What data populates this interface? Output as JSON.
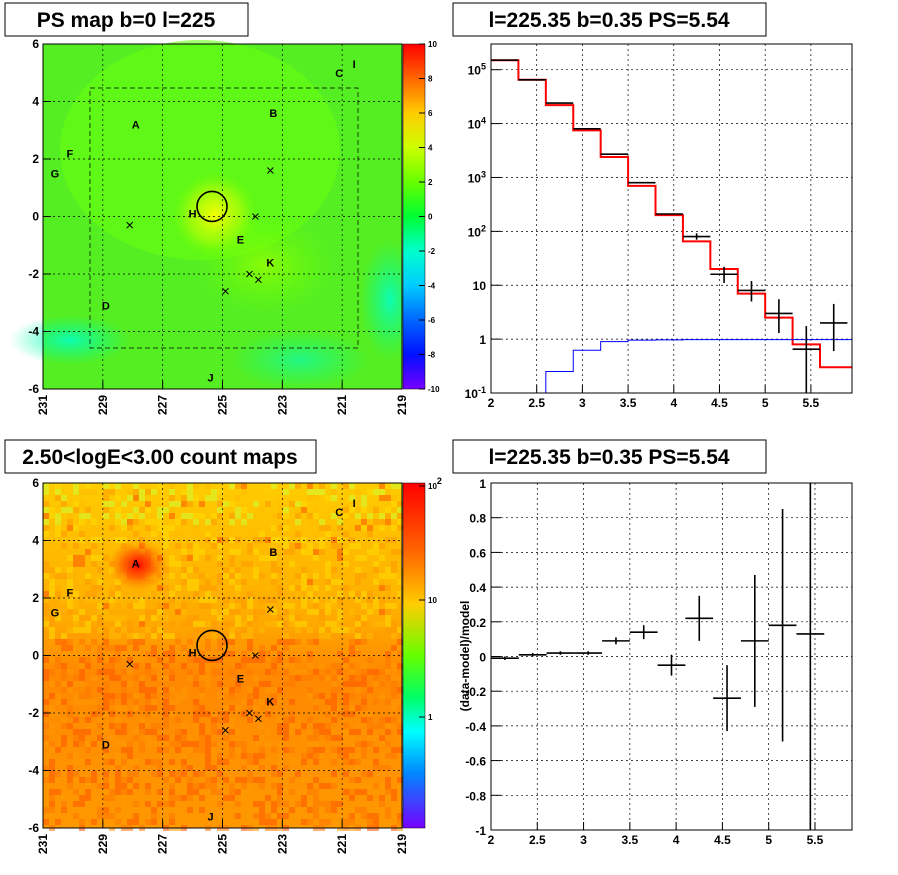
{
  "colors": {
    "model": "#ff0000",
    "data": "#000000",
    "background_model": "#0000ff"
  },
  "panels": {
    "ps_map": {
      "title": "PS map b=0 l=225",
      "x_ticks": [
        "231",
        "229",
        "227",
        "225",
        "223",
        "221",
        "219"
      ],
      "y_ticks": [
        "6",
        "4",
        "2",
        "0",
        "-2",
        "-4",
        "-6"
      ],
      "colorbar_ticks": [
        "10",
        "8",
        "6",
        "4",
        "2",
        "0",
        "-2",
        "-4",
        "-6",
        "-8",
        "-10"
      ],
      "sources": [
        {
          "name": "A",
          "l": 227.9,
          "b": 3.2
        },
        {
          "name": "B",
          "l": 223.3,
          "b": 3.6
        },
        {
          "name": "C",
          "l": 221.1,
          "b": 5.0
        },
        {
          "name": "I",
          "l": 220.6,
          "b": 5.3
        },
        {
          "name": "F",
          "l": 230.1,
          "b": 2.2
        },
        {
          "name": "G",
          "l": 230.6,
          "b": 1.5
        },
        {
          "name": "H",
          "l": 226.0,
          "b": 0.1
        },
        {
          "name": "E",
          "l": 224.4,
          "b": -0.8
        },
        {
          "name": "K",
          "l": 223.4,
          "b": -1.6
        },
        {
          "name": "D",
          "l": 228.9,
          "b": -3.1
        },
        {
          "name": "J",
          "l": 225.4,
          "b": -5.6
        }
      ],
      "crosses": [
        {
          "l": 223.4,
          "b": 1.6
        },
        {
          "l": 223.9,
          "b": 0.0
        },
        {
          "l": 228.1,
          "b": -0.3
        },
        {
          "l": 224.1,
          "b": -2.0
        },
        {
          "l": 223.8,
          "b": -2.2
        },
        {
          "l": 224.9,
          "b": -2.6
        }
      ],
      "circle": {
        "l": 225.35,
        "b": 0.35
      }
    },
    "count_map": {
      "title": "2.50<logE<3.00 count maps",
      "x_ticks": [
        "231",
        "229",
        "227",
        "225",
        "223",
        "221",
        "219"
      ],
      "y_ticks": [
        "6",
        "4",
        "2",
        "0",
        "-2",
        "-4",
        "-6"
      ],
      "colorbar_ticks": [
        "10^2",
        "10",
        "1"
      ]
    }
  },
  "chart_data": [
    {
      "type": "heatmap",
      "title": "PS map b=0 l=225",
      "xlabel": "",
      "ylabel": "",
      "xlim": [
        231,
        219
      ],
      "ylim": [
        -6,
        6
      ],
      "zlim": [
        -10,
        10
      ],
      "grid": true
    },
    {
      "type": "line",
      "title": "l=225.35 b=0.35 PS=5.54",
      "xlim": [
        2,
        5.95
      ],
      "ylim": [
        0.1,
        300000
      ],
      "yscale": "log",
      "x_ticks": [
        "2",
        "2.5",
        "3",
        "3.5",
        "4",
        "4.5",
        "5",
        "5.5"
      ],
      "y_ticks": [
        "10^5",
        "10^4",
        "10^3",
        "10^2",
        "10",
        "1",
        "10^-1"
      ],
      "grid": true,
      "series": [
        {
          "style": "step",
          "color": "#ff0000",
          "edges": [
            2.0,
            2.3,
            2.6,
            2.9,
            3.2,
            3.5,
            3.8,
            4.1,
            4.4,
            4.7,
            5.0,
            5.3,
            5.6,
            5.95
          ],
          "values": [
            150000,
            65000,
            22000,
            7500,
            2400,
            700,
            200,
            65,
            20,
            7,
            2.5,
            0.8,
            0.3
          ]
        },
        {
          "style": "step",
          "color": "#0000ff",
          "edges": [
            2.6,
            2.9,
            3.2,
            3.5,
            3.8,
            4.1,
            4.4,
            4.7,
            5.0,
            5.3,
            5.6,
            5.95
          ],
          "values": [
            0.25,
            0.62,
            0.9,
            0.96,
            0.97,
            0.98,
            0.98,
            0.98,
            0.98,
            0.98,
            0.98
          ]
        },
        {
          "style": "errorbar",
          "color": "#000000",
          "x": [
            2.15,
            2.45,
            2.75,
            3.05,
            3.35,
            3.65,
            3.95,
            4.25,
            4.55,
            4.85,
            5.15,
            5.45,
            5.75
          ],
          "y": [
            150000,
            65000,
            24000,
            8000,
            2700,
            800,
            210,
            80,
            16,
            8,
            3,
            0.65,
            2
          ],
          "xerr": 0.15,
          "yerr_low": [
            0,
            0,
            0,
            0,
            0,
            0,
            0,
            10,
            5,
            3,
            1.7,
            0.55,
            1.4
          ],
          "yerr_high": [
            0,
            0,
            0,
            0,
            0,
            0,
            0,
            12,
            6,
            4,
            2.5,
            1.1,
            2.5
          ]
        }
      ]
    },
    {
      "type": "heatmap",
      "title": "2.50<logE<3.00 count maps",
      "xlim": [
        231,
        219
      ],
      "ylim": [
        -6,
        6
      ],
      "zscale": "log",
      "grid": true
    },
    {
      "type": "scatter",
      "title": "l=225.35 b=0.35 PS=5.54",
      "ylabel": "(data-model)/model",
      "xlim": [
        2,
        5.9
      ],
      "ylim": [
        -1,
        1
      ],
      "x_ticks": [
        "2",
        "2.5",
        "3",
        "3.5",
        "4",
        "4.5",
        "5",
        "5.5"
      ],
      "y_ticks": [
        "1",
        "0.8",
        "0.6",
        "0.4",
        "0.2",
        "0",
        "-0.2",
        "-0.4",
        "-0.6",
        "-0.8",
        "-1"
      ],
      "grid": true,
      "series": [
        {
          "style": "errorbar",
          "color": "#000000",
          "x": [
            2.15,
            2.45,
            2.75,
            3.05,
            3.35,
            3.65,
            3.95,
            4.25,
            4.55,
            4.85,
            5.15,
            5.45
          ],
          "y": [
            -0.01,
            0.01,
            0.02,
            0.02,
            0.09,
            0.14,
            -0.05,
            0.22,
            -0.24,
            0.09,
            0.18,
            0.13
          ],
          "xerr": 0.15,
          "yerr": [
            0.01,
            0.01,
            0.01,
            0.01,
            0.02,
            0.04,
            0.06,
            0.13,
            0.19,
            0.38,
            0.67,
            1.2
          ]
        }
      ]
    }
  ]
}
